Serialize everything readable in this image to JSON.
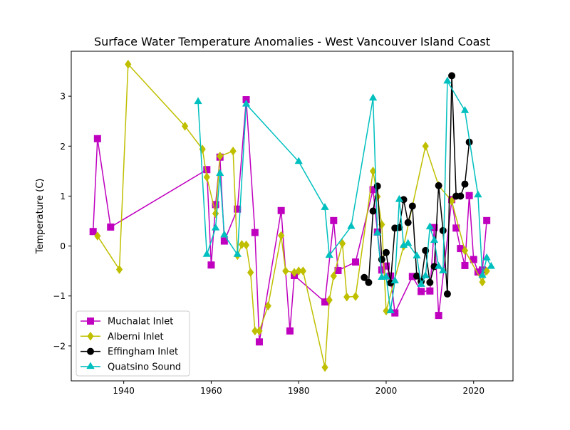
{
  "chart_data": {
    "type": "line",
    "title": "Surface Water Temperature Anomalies - West Vancouver Island Coast",
    "xlabel": "",
    "ylabel": "Temperature (C)",
    "xlim": [
      1928,
      2029
    ],
    "ylim": [
      -2.7,
      3.9
    ],
    "x_ticks": [
      1940,
      1960,
      1980,
      2000,
      2020
    ],
    "y_ticks": [
      -2,
      -1,
      0,
      1,
      2,
      3
    ],
    "grid": false,
    "legend_position": "lower-left",
    "series": [
      {
        "name": "Muchalat Inlet",
        "color": "#bf00bf",
        "marker": "square",
        "x": [
          1933,
          1934,
          1937,
          1959,
          1960,
          1961,
          1962,
          1963,
          1966,
          1968,
          1970,
          1971,
          1976,
          1978,
          1979,
          1986,
          1988,
          1989,
          1993,
          1997,
          1998,
          1999,
          2000,
          2001,
          2002,
          2006,
          2008,
          2010,
          2011,
          2012,
          2015,
          2016,
          2017,
          2018,
          2019,
          2020,
          2021,
          2022,
          2023
        ],
        "y": [
          0.29,
          2.15,
          0.38,
          1.53,
          -0.38,
          0.83,
          1.78,
          0.1,
          0.74,
          2.93,
          0.27,
          -1.92,
          0.71,
          -1.7,
          -0.59,
          -1.12,
          0.51,
          -0.49,
          -0.32,
          1.13,
          0.28,
          -0.48,
          -0.4,
          -0.6,
          -1.34,
          -0.61,
          -0.91,
          -0.9,
          0.37,
          -1.39,
          0.93,
          0.36,
          -0.05,
          -0.39,
          1.01,
          -0.27,
          -0.52,
          -0.48,
          0.51
        ]
      },
      {
        "name": "Alberni Inlet",
        "color": "#bfbf00",
        "marker": "diamond",
        "x": [
          1934,
          1939,
          1941,
          1954,
          1958,
          1959,
          1961,
          1962,
          1965,
          1966,
          1967,
          1968,
          1969,
          1970,
          1971,
          1973,
          1976,
          1977,
          1979,
          1980,
          1981,
          1986,
          1987,
          1988,
          1990,
          1991,
          1993,
          1997,
          1998,
          1999,
          2000,
          2004,
          2009,
          2012,
          2015,
          2018,
          2022,
          2023
        ],
        "y": [
          0.2,
          -0.47,
          3.64,
          2.4,
          1.94,
          1.38,
          0.65,
          1.8,
          1.9,
          -0.19,
          0.03,
          0.02,
          -0.53,
          -1.7,
          -1.7,
          -1.2,
          0.21,
          -0.5,
          -0.53,
          -0.5,
          -0.5,
          -2.43,
          -1.08,
          -0.6,
          0.05,
          -1.02,
          -1.01,
          1.5,
          0.99,
          0.43,
          -1.3,
          0.0,
          2.0,
          1.21,
          0.9,
          -0.09,
          -0.72,
          -0.5
        ]
      },
      {
        "name": "Effingham Inlet",
        "color": "#000000",
        "marker": "circle",
        "x": [
          1995,
          1996,
          1997,
          1998,
          1999,
          2000,
          2001,
          2002,
          2003,
          2004,
          2005,
          2006,
          2007,
          2008,
          2009,
          2010,
          2011,
          2012,
          2013,
          2014,
          2015,
          2016,
          2017,
          2018,
          2019
        ],
        "y": [
          -0.63,
          -0.73,
          0.7,
          1.2,
          -0.27,
          -0.13,
          -0.74,
          0.36,
          0.37,
          0.93,
          0.47,
          0.8,
          -0.6,
          -0.71,
          -0.09,
          -0.73,
          -0.41,
          1.21,
          0.31,
          -0.96,
          3.41,
          1.0,
          1.0,
          1.24,
          2.08
        ]
      },
      {
        "name": "Quatsino Sound",
        "color": "#00bfbf",
        "marker": "triangle",
        "x": [
          1957,
          1959,
          1961,
          1962,
          1963,
          1966,
          1968,
          1980,
          1986,
          1987,
          1992,
          1997,
          1998,
          1999,
          2000,
          2001,
          2002,
          2003,
          2004,
          2005,
          2007,
          2008,
          2009,
          2010,
          2011,
          2012,
          2013,
          2014,
          2018,
          2021,
          2022,
          2023,
          2024
        ],
        "y": [
          2.89,
          -0.17,
          0.36,
          1.45,
          0.22,
          -0.17,
          2.84,
          1.69,
          0.77,
          -0.19,
          0.39,
          2.96,
          0.26,
          -0.63,
          -0.62,
          -1.3,
          -0.7,
          0.93,
          0.01,
          0.05,
          -0.2,
          -0.77,
          -0.6,
          0.38,
          0.11,
          -0.41,
          -0.5,
          3.3,
          2.71,
          1.02,
          -0.59,
          -0.24,
          -0.41
        ]
      }
    ]
  }
}
